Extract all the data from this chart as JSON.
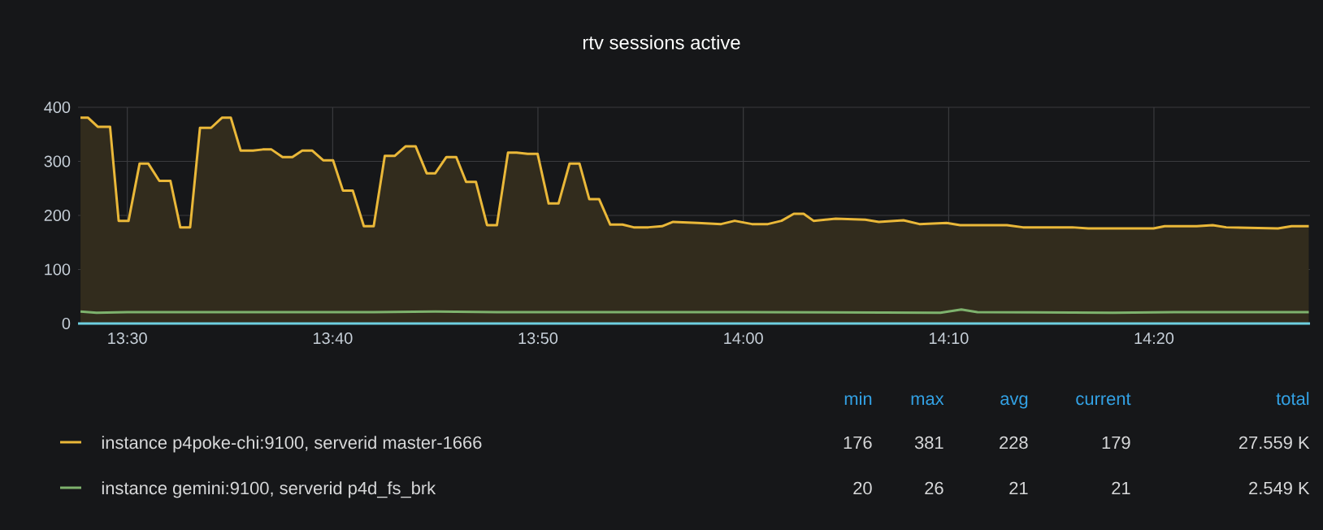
{
  "chart_data": {
    "type": "line",
    "title": "rtv sessions active",
    "xlim": [
      13.46,
      14.46
    ],
    "ylim": [
      0,
      400
    ],
    "xticks": [
      {
        "value": 13.5,
        "label": "13:30"
      },
      {
        "value": 13.6667,
        "label": "13:40"
      },
      {
        "value": 13.8333,
        "label": "13:50"
      },
      {
        "value": 14.0,
        "label": "14:00"
      },
      {
        "value": 14.1667,
        "label": "14:10"
      },
      {
        "value": 14.3333,
        "label": "14:20"
      }
    ],
    "yticks": [
      0,
      100,
      200,
      300,
      400
    ],
    "grid": true,
    "legend": "bottom",
    "series": [
      {
        "name": "instance p4poke-chi:9100, serverid master-1666",
        "type": "area",
        "color": "#eab839",
        "x": [
          13.462,
          13.468,
          13.476,
          13.486,
          13.493,
          13.501,
          13.51,
          13.517,
          13.526,
          13.535,
          13.543,
          13.551,
          13.559,
          13.568,
          13.577,
          13.584,
          13.592,
          13.602,
          13.61,
          13.617,
          13.626,
          13.634,
          13.642,
          13.65,
          13.659,
          13.667,
          13.675,
          13.683,
          13.692,
          13.7,
          13.709,
          13.717,
          13.726,
          13.734,
          13.743,
          13.75,
          13.759,
          13.767,
          13.775,
          13.783,
          13.792,
          13.8,
          13.809,
          13.816,
          13.825,
          13.833,
          13.842,
          13.85,
          13.859,
          13.867,
          13.875,
          13.883,
          13.892,
          13.902,
          13.911,
          13.923,
          13.934,
          13.943,
          13.963,
          13.982,
          13.993,
          14.007,
          14.02,
          14.031,
          14.041,
          14.049,
          14.057,
          14.075,
          14.099,
          14.11,
          14.13,
          14.143,
          14.165,
          14.176,
          14.214,
          14.227,
          14.267,
          14.28,
          14.333,
          14.342,
          14.368,
          14.381,
          14.392,
          14.434,
          14.445,
          14.459
        ],
        "values": [
          381,
          381,
          364,
          364,
          190,
          190,
          296,
          296,
          264,
          264,
          178,
          178,
          362,
          362,
          381,
          381,
          320,
          320,
          322,
          322,
          308,
          308,
          320,
          320,
          302,
          302,
          246,
          246,
          180,
          180,
          310,
          310,
          328,
          328,
          278,
          278,
          308,
          308,
          262,
          262,
          182,
          182,
          316,
          316,
          314,
          314,
          222,
          222,
          296,
          296,
          230,
          230,
          183,
          183,
          178,
          178,
          180,
          188,
          186,
          184,
          190,
          184,
          184,
          190,
          203,
          203,
          190,
          194,
          192,
          188,
          191,
          184,
          186,
          182,
          182,
          178,
          178,
          176,
          176,
          180,
          180,
          182,
          178,
          176,
          180,
          180
        ]
      },
      {
        "name": "instance gemini:9100, serverid p4d_fs_brk",
        "color": "#7eb26d",
        "x": [
          13.462,
          13.475,
          13.5,
          13.7,
          13.75,
          13.8,
          14.0,
          14.16,
          14.177,
          14.19,
          14.3,
          14.35,
          14.459
        ],
        "values": [
          22,
          20,
          21,
          21,
          22,
          21,
          21,
          20,
          26,
          21,
          20,
          21,
          21
        ]
      },
      {
        "color": "#6ed0e0",
        "x": [
          13.46,
          14.46
        ],
        "values": [
          0,
          0
        ]
      }
    ],
    "annotations": [
      "min",
      "max",
      "avg",
      "current",
      "total",
      "176",
      "381",
      "228",
      "179",
      "27.559 K",
      "20",
      "26",
      "21",
      "21",
      "2.549 K"
    ]
  }
}
